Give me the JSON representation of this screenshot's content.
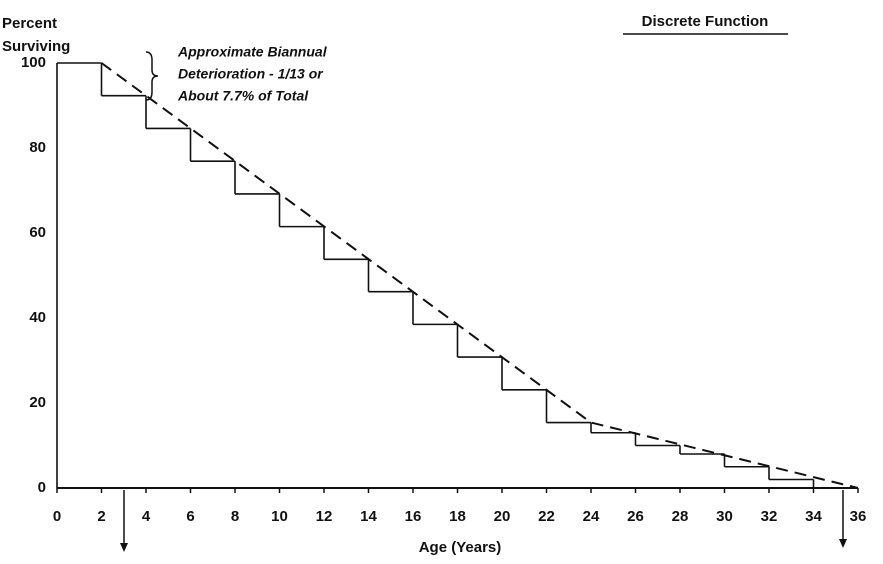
{
  "chart_data": {
    "type": "step",
    "title": "Discrete Function",
    "ylabel": [
      "Percent",
      "Surviving"
    ],
    "xlabel": "Age (Years)",
    "annotation": [
      "Approximate Biannual",
      "Deterioration - 1/13 or",
      "About 7.7% of Total"
    ],
    "xlim": [
      0,
      36
    ],
    "ylim": [
      0,
      100
    ],
    "xticks": [
      0,
      2,
      4,
      6,
      8,
      10,
      12,
      14,
      16,
      18,
      20,
      22,
      24,
      26,
      28,
      30,
      32,
      34,
      36
    ],
    "yticks": [
      0,
      20,
      40,
      60,
      80,
      100
    ],
    "grid": false,
    "series": [
      {
        "color": "#111111",
        "x": [
          0,
          2,
          4,
          6,
          8,
          10,
          12,
          14,
          16,
          18,
          20,
          22,
          24,
          26,
          28,
          30,
          32,
          34
        ],
        "values": [
          100,
          92.3,
          84.6,
          76.9,
          69.2,
          61.5,
          53.8,
          46.2,
          38.5,
          30.8,
          23.1,
          15.4,
          13,
          10,
          8,
          5,
          2,
          0
        ]
      },
      {
        "color": "#111111",
        "dashed": true,
        "x": [
          2,
          24,
          36
        ],
        "values": [
          100,
          15.4,
          0
        ]
      }
    ]
  }
}
